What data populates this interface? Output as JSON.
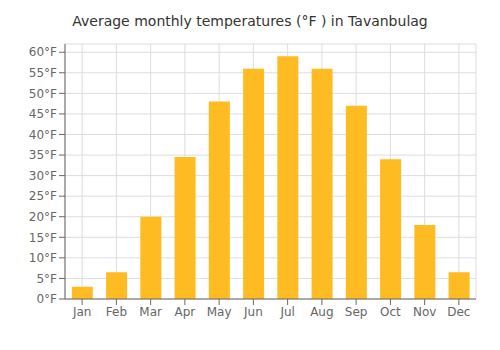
{
  "chart_data": {
    "type": "bar",
    "title": "Average monthly temperatures (°F ) in Tavanbulag",
    "categories": [
      "Jan",
      "Feb",
      "Mar",
      "Apr",
      "May",
      "Jun",
      "Jul",
      "Aug",
      "Sep",
      "Oct",
      "Nov",
      "Dec"
    ],
    "values": [
      3,
      6.5,
      20,
      34.5,
      48,
      56,
      59,
      56,
      47,
      34,
      18,
      6.5
    ],
    "color": "#FFBB22",
    "ylim": [
      0,
      62
    ],
    "yticks": [
      {
        "value": 0,
        "label": "0°F"
      },
      {
        "value": 5,
        "label": "5°F"
      },
      {
        "value": 10,
        "label": "10°F"
      },
      {
        "value": 15,
        "label": "15°F"
      },
      {
        "value": 20,
        "label": "20°F"
      },
      {
        "value": 25,
        "label": "25°F"
      },
      {
        "value": 30,
        "label": "30°F"
      },
      {
        "value": 35,
        "label": "35°F"
      },
      {
        "value": 40,
        "label": "40°F"
      },
      {
        "value": 45,
        "label": "45°F"
      },
      {
        "value": 50,
        "label": "50°F"
      },
      {
        "value": 55,
        "label": "55°F"
      },
      {
        "value": 60,
        "label": "60°F"
      }
    ],
    "grid": true
  }
}
